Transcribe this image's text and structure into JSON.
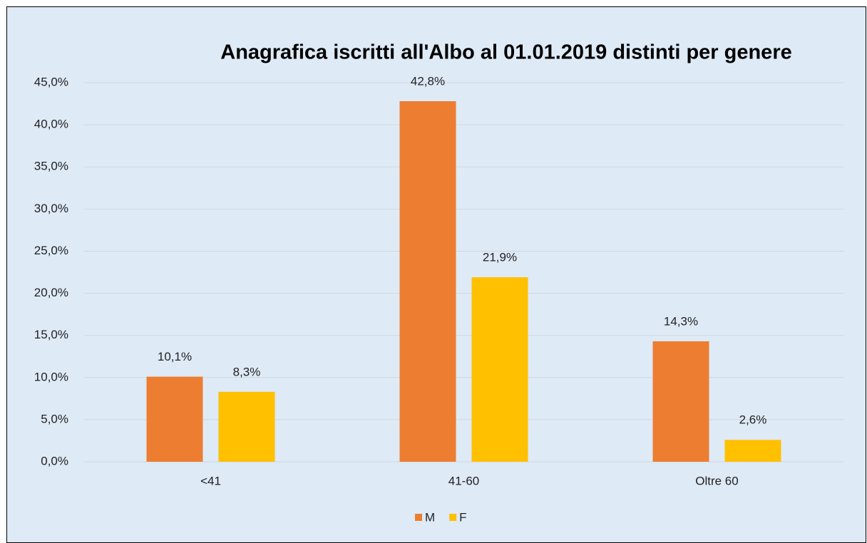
{
  "chart_data": {
    "type": "bar",
    "title": "Anagrafica iscritti all'Albo al 01.01.2019 distinti per genere",
    "categories": [
      "<41",
      "41-60",
      "Oltre 60"
    ],
    "series": [
      {
        "name": "M",
        "color": "#ED7D31",
        "values": [
          10.1,
          42.8,
          14.3
        ],
        "value_labels": [
          "10,1%",
          "42,8%",
          "14,3%"
        ]
      },
      {
        "name": "F",
        "color": "#FFC000",
        "values": [
          8.3,
          21.9,
          2.6
        ],
        "value_labels": [
          "8,3%",
          "21,9%",
          "2,6%"
        ]
      }
    ],
    "ylim": [
      0,
      45
    ],
    "yticks": [
      {
        "value": 0,
        "label": "0,0%"
      },
      {
        "value": 5,
        "label": "5,0%"
      },
      {
        "value": 10,
        "label": "10,0%"
      },
      {
        "value": 15,
        "label": "15,0%"
      },
      {
        "value": 20,
        "label": "20,0%"
      },
      {
        "value": 25,
        "label": "25,0%"
      },
      {
        "value": 30,
        "label": "30,0%"
      },
      {
        "value": 35,
        "label": "35,0%"
      },
      {
        "value": 40,
        "label": "40,0%"
      },
      {
        "value": 45,
        "label": "45,0%"
      }
    ],
    "grid": true,
    "legend": "bottom"
  }
}
